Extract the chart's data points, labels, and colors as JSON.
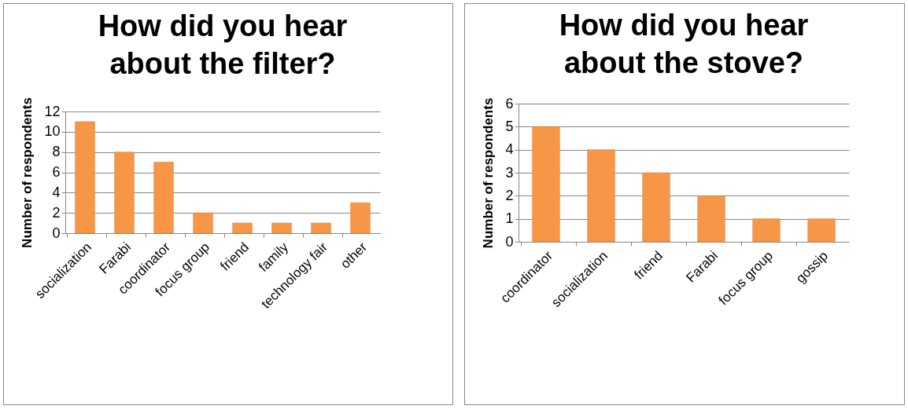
{
  "chart_data": [
    {
      "type": "bar",
      "title": "How did you hear about the filter?",
      "ylabel": "Number of respondents",
      "categories": [
        "socialization",
        "Farabi",
        "coordinator",
        "focus group",
        "friend",
        "family",
        "technology fair",
        "other"
      ],
      "values": [
        11,
        8,
        7,
        2,
        1,
        1,
        1,
        3
      ],
      "color": "#f79646",
      "ylim": [
        0,
        12
      ],
      "yticks": [
        0,
        2,
        4,
        6,
        8,
        10,
        12
      ],
      "grid": "y"
    },
    {
      "type": "bar",
      "title": "How did you hear about the stove?",
      "ylabel": "Number of respondents",
      "categories": [
        "coordinator",
        "socialization",
        "friend",
        "Farabi",
        "focus group",
        "gossip"
      ],
      "values": [
        5,
        4,
        3,
        2,
        1,
        1
      ],
      "color": "#f79646",
      "ylim": [
        0,
        6
      ],
      "yticks": [
        0,
        1,
        2,
        3,
        4,
        5,
        6
      ],
      "grid": "y"
    }
  ]
}
